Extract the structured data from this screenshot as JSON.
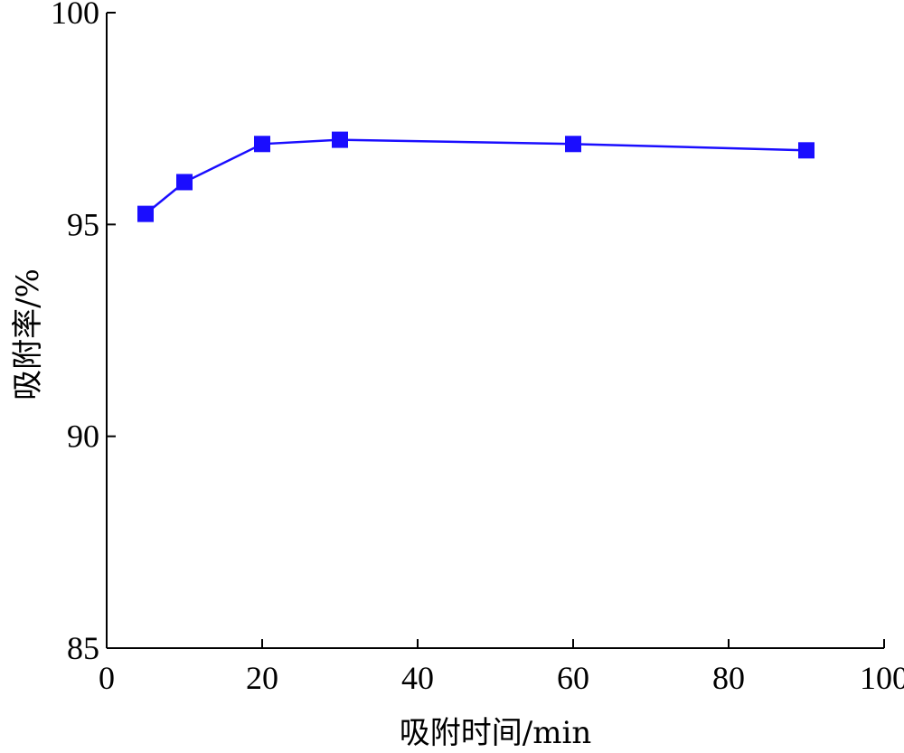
{
  "chart_data": {
    "type": "line",
    "xlabel": "吸附时间/min",
    "ylabel": "吸附率/%",
    "xlim": [
      0,
      100
    ],
    "ylim": [
      85,
      100
    ],
    "x_ticks": [
      0,
      20,
      40,
      60,
      80,
      100
    ],
    "y_ticks": [
      85,
      90,
      95,
      100
    ],
    "grid": false,
    "series": [
      {
        "marker": "square",
        "color": "#1a0dff",
        "x": [
          5,
          10,
          20,
          30,
          60,
          90
        ],
        "y": [
          95.25,
          96.0,
          96.9,
          97.0,
          96.9,
          96.75
        ]
      }
    ]
  }
}
